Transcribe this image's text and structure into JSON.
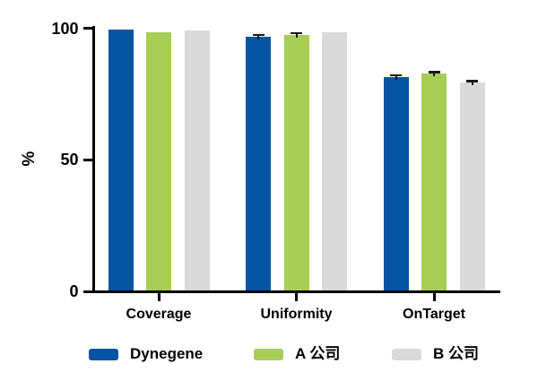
{
  "chart_data": {
    "type": "bar",
    "title": "",
    "ylabel": "%",
    "xlabel": "",
    "ylim": [
      0,
      100
    ],
    "yticks": [
      0,
      50,
      100
    ],
    "grid": false,
    "legend_position": "bottom",
    "axis_color": "#000000",
    "error_bar_color": "#1a1a1a",
    "categories": [
      "Coverage",
      "Uniformity",
      "OnTarget"
    ],
    "series": [
      {
        "name": "Dynegene",
        "color": "#0654A4",
        "values": [
          99.5,
          96.8,
          81.6
        ],
        "errors": [
          0,
          1.0,
          0.9
        ]
      },
      {
        "name": "A 公司",
        "color": "#A7CE53",
        "values": [
          98.5,
          97.5,
          82.7
        ],
        "errors": [
          0,
          1.0,
          1.0
        ]
      },
      {
        "name": "B 公司",
        "color": "#D9D9D9",
        "values": [
          99.0,
          98.5,
          79.4
        ],
        "errors": [
          0,
          0,
          0.9
        ]
      }
    ]
  }
}
